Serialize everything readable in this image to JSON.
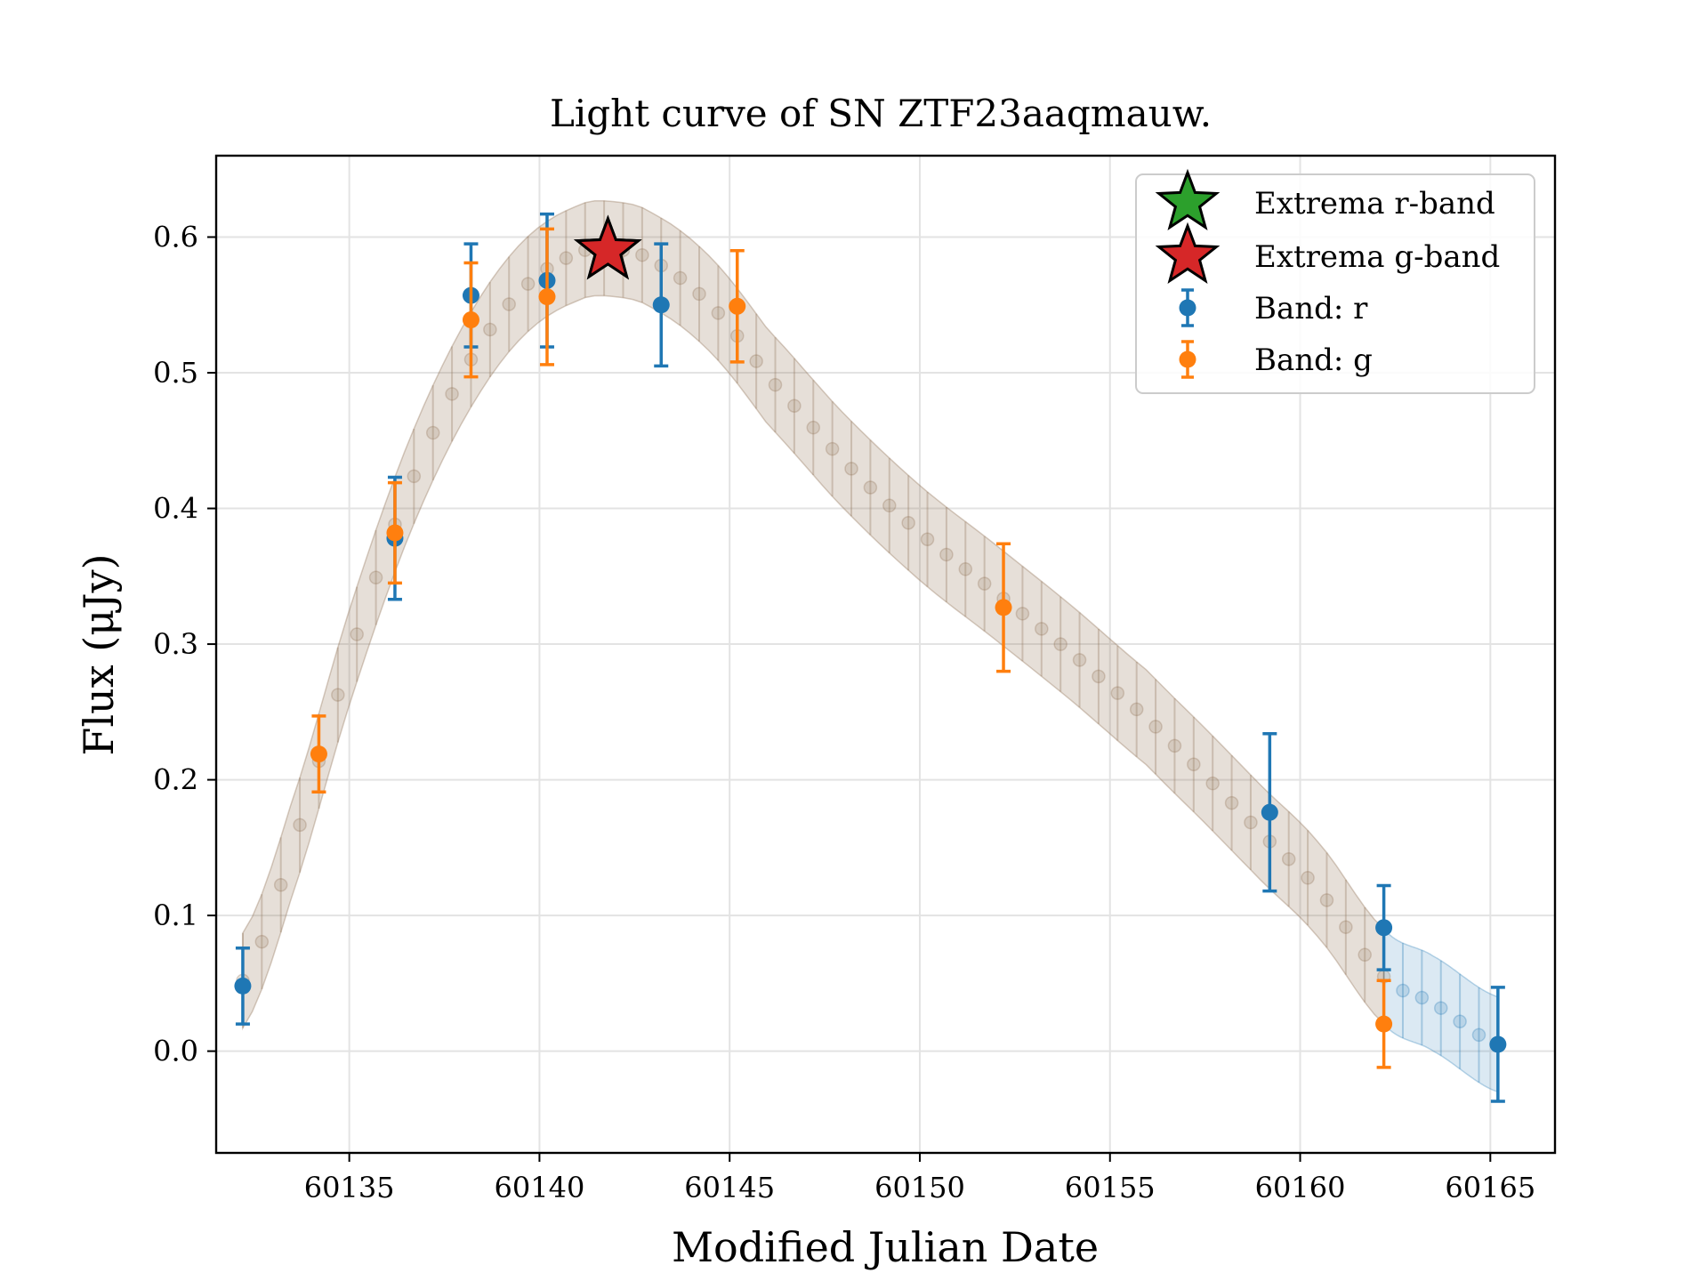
{
  "chart_data": {
    "type": "scatter",
    "title": "Light curve of SN ZTF23aaqmauw.",
    "xlabel": "Modified Julian Date",
    "ylabel": "Flux (μJy)",
    "xlim": [
      60131.5,
      60166.7
    ],
    "ylim": [
      -0.075,
      0.66
    ],
    "xticks": [
      60135,
      60140,
      60145,
      60150,
      60155,
      60160,
      60165
    ],
    "xtick_labels": [
      "60135",
      "60140",
      "60145",
      "60150",
      "60155",
      "60160",
      "60165"
    ],
    "yticks": [
      0.0,
      0.1,
      0.2,
      0.3,
      0.4,
      0.5,
      0.6
    ],
    "ytick_labels": [
      "0.0",
      "0.1",
      "0.2",
      "0.3",
      "0.4",
      "0.5",
      "0.6"
    ],
    "grid": true,
    "legend_position": "top-right",
    "colors": {
      "r": "#1f77b4",
      "g": "#ff7f0e",
      "extrema_r": "#2ca02c",
      "extrema_g": "#d62728",
      "model_g": "#8c6d4f",
      "model_r": "#1f77b4"
    },
    "series": [
      {
        "name": "Band: r",
        "kind": "errorbar",
        "x": [
          60132.2,
          60136.2,
          60138.2,
          60140.2,
          60143.2,
          60159.2,
          60162.2,
          60165.2
        ],
        "y": [
          0.048,
          0.378,
          0.557,
          0.568,
          0.55,
          0.176,
          0.091,
          0.005
        ],
        "yerr": [
          0.028,
          0.045,
          0.038,
          0.049,
          0.045,
          0.058,
          0.031,
          0.042
        ]
      },
      {
        "name": "Band: g",
        "kind": "errorbar",
        "x": [
          60134.2,
          60136.2,
          60138.2,
          60140.2,
          60145.2,
          60152.2,
          60162.2
        ],
        "y": [
          0.219,
          0.382,
          0.539,
          0.556,
          0.549,
          0.327,
          0.02
        ],
        "yerr": [
          0.028,
          0.037,
          0.042,
          0.05,
          0.041,
          0.047,
          0.032
        ]
      },
      {
        "name": "Extrema r-band",
        "kind": "star",
        "x": [
          60141.8
        ],
        "y": [
          0.59
        ]
      },
      {
        "name": "Extrema g-band",
        "kind": "star",
        "x": [
          60141.8
        ],
        "y": [
          0.59
        ]
      }
    ],
    "model_curve": {
      "x": [
        60132.2,
        60133.5,
        60135,
        60136.5,
        60138,
        60139.5,
        60141,
        60142,
        60143,
        60144.5,
        60146,
        60148,
        60150,
        60152,
        60154,
        60156,
        60157.5,
        60159,
        60160.5,
        60162.2,
        60163.5,
        60165.2
      ],
      "y": [
        0.052,
        0.15,
        0.29,
        0.41,
        0.5,
        0.56,
        0.588,
        0.591,
        0.582,
        0.55,
        0.497,
        0.435,
        0.382,
        0.338,
        0.293,
        0.245,
        0.203,
        0.16,
        0.118,
        0.055,
        0.035,
        0.005
      ],
      "band_halfwidth": 0.035,
      "tail_start_x": 60162.2
    }
  }
}
